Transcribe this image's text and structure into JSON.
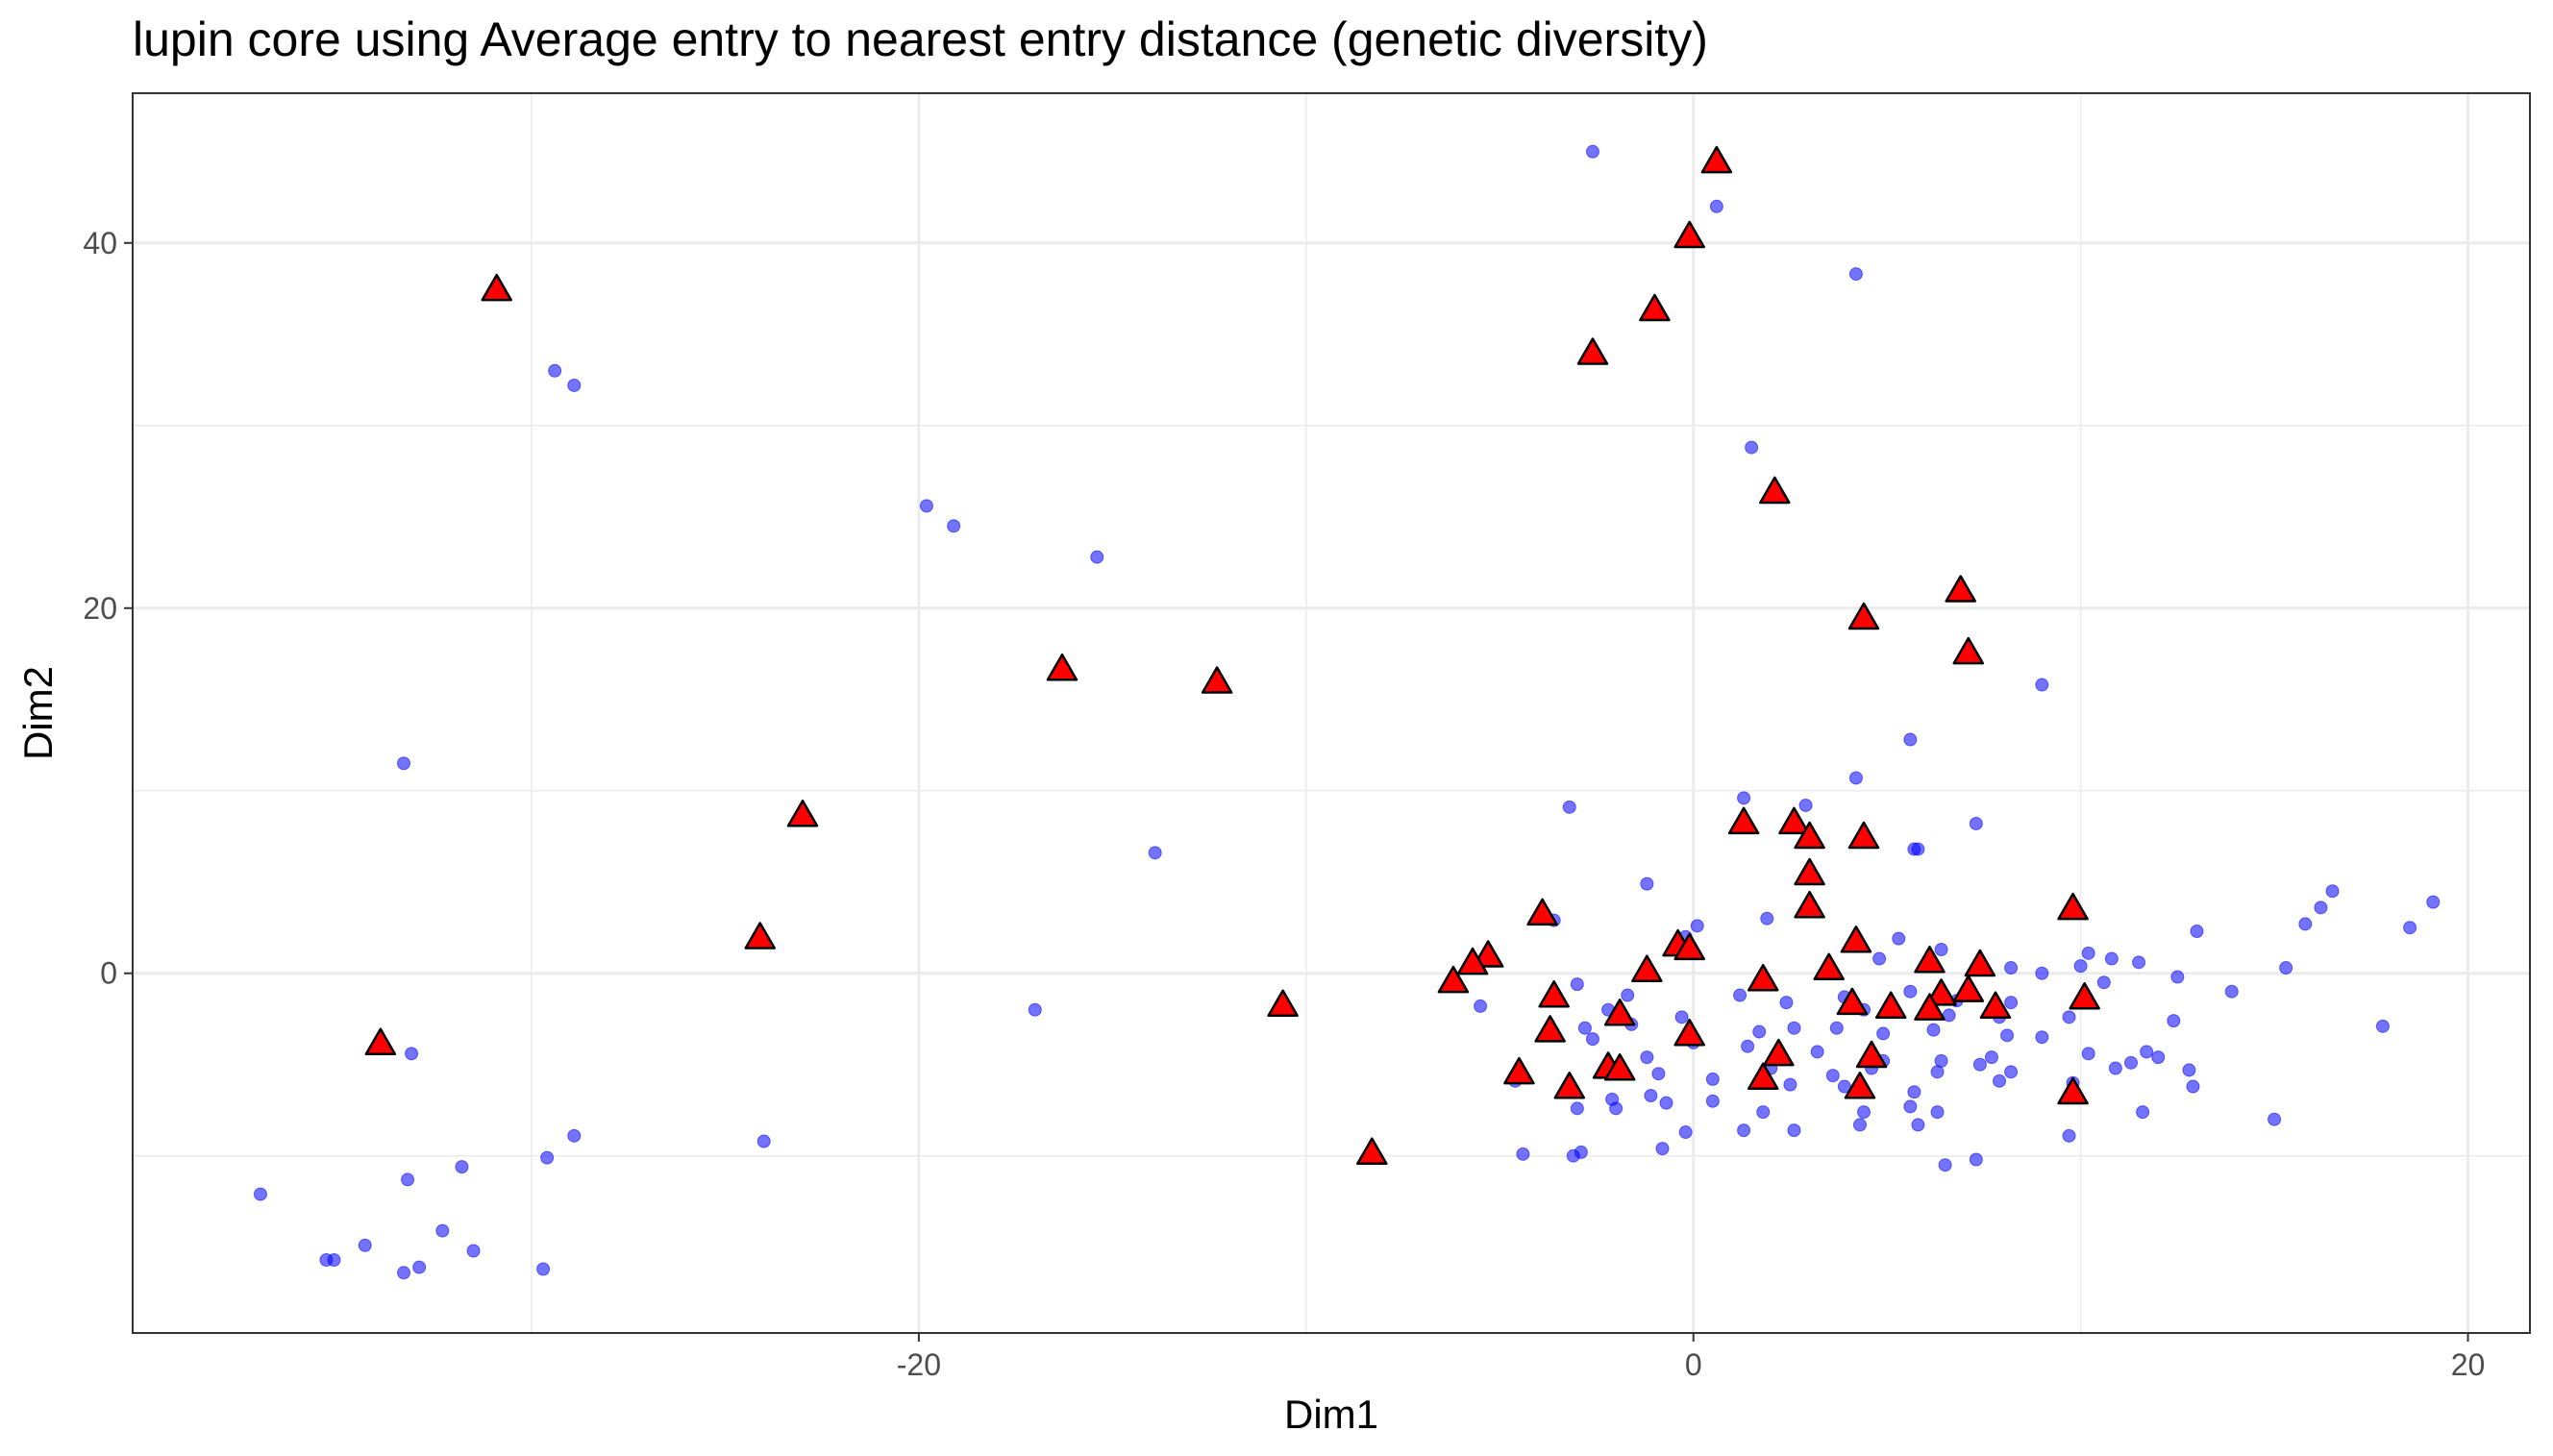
{
  "chart_data": {
    "type": "scatter",
    "title": "lupin core using Average entry to nearest entry distance (genetic diversity)",
    "xlabel": "Dim1",
    "ylabel": "Dim2",
    "xlim": [
      -40.3,
      21.6
    ],
    "ylim": [
      -19.7,
      48.2
    ],
    "x_ticks": [
      -20,
      0,
      20
    ],
    "x_tick_labels": [
      "-20",
      "0",
      "20"
    ],
    "y_ticks": [
      0,
      20,
      40
    ],
    "y_tick_labels": [
      "0",
      "20",
      "40"
    ],
    "x_minor": [
      -30,
      -10,
      10
    ],
    "y_minor": [
      -10,
      10,
      30
    ],
    "grid": true,
    "legend": "none",
    "colors": {
      "entries": "#0000ff",
      "core": "#ff0000",
      "core_outline": "#000000"
    },
    "series": [
      {
        "marker": "circle",
        "points": [
          [
            -2.6,
            45.0
          ],
          [
            0.6,
            42.0
          ],
          [
            4.2,
            38.3
          ],
          [
            -29.4,
            33.0
          ],
          [
            -28.9,
            32.2
          ],
          [
            1.5,
            28.8
          ],
          [
            -19.8,
            25.6
          ],
          [
            -19.1,
            24.5
          ],
          [
            -15.4,
            22.8
          ],
          [
            9.0,
            15.8
          ],
          [
            -33.3,
            11.5
          ],
          [
            5.6,
            12.8
          ],
          [
            4.2,
            10.7
          ],
          [
            1.3,
            9.6
          ],
          [
            2.9,
            9.2
          ],
          [
            -3.2,
            9.1
          ],
          [
            7.3,
            8.2
          ],
          [
            -13.9,
            6.6
          ],
          [
            5.7,
            6.8
          ],
          [
            5.8,
            6.8
          ],
          [
            -1.2,
            4.9
          ],
          [
            16.5,
            4.5
          ],
          [
            19.1,
            3.9
          ],
          [
            16.2,
            3.6
          ],
          [
            15.8,
            2.7
          ],
          [
            13.0,
            2.3
          ],
          [
            18.5,
            2.5
          ],
          [
            -3.6,
            2.9
          ],
          [
            0.1,
            2.6
          ],
          [
            -0.2,
            2.0
          ],
          [
            1.9,
            3.0
          ],
          [
            5.3,
            1.9
          ],
          [
            4.8,
            0.8
          ],
          [
            6.4,
            1.3
          ],
          [
            10.2,
            1.1
          ],
          [
            10.8,
            0.8
          ],
          [
            11.5,
            0.6
          ],
          [
            15.3,
            0.3
          ],
          [
            9.0,
            0.0
          ],
          [
            12.5,
            -0.2
          ],
          [
            8.2,
            0.3
          ],
          [
            10.0,
            0.4
          ],
          [
            13.9,
            -1.0
          ],
          [
            10.6,
            -0.5
          ],
          [
            -3.0,
            -0.6
          ],
          [
            -1.7,
            -1.2
          ],
          [
            1.2,
            -1.2
          ],
          [
            3.9,
            -1.3
          ],
          [
            5.6,
            -1.0
          ],
          [
            6.8,
            -1.5
          ],
          [
            8.2,
            -1.6
          ],
          [
            -17.0,
            -2.0
          ],
          [
            -5.5,
            -1.8
          ],
          [
            -2.2,
            -2.0
          ],
          [
            2.4,
            -1.6
          ],
          [
            4.4,
            -2.0
          ],
          [
            6.6,
            -2.3
          ],
          [
            7.9,
            -2.4
          ],
          [
            9.7,
            -2.4
          ],
          [
            12.4,
            -2.6
          ],
          [
            17.8,
            -2.9
          ],
          [
            -2.8,
            -3.0
          ],
          [
            -1.6,
            -2.8
          ],
          [
            -0.3,
            -2.4
          ],
          [
            1.7,
            -3.2
          ],
          [
            2.6,
            -3.0
          ],
          [
            3.7,
            -3.0
          ],
          [
            4.9,
            -3.3
          ],
          [
            6.2,
            -3.1
          ],
          [
            8.1,
            -3.4
          ],
          [
            9.0,
            -3.5
          ],
          [
            -2.6,
            -3.6
          ],
          [
            0.0,
            -3.8
          ],
          [
            1.4,
            -4.0
          ],
          [
            3.2,
            -4.3
          ],
          [
            4.9,
            -4.8
          ],
          [
            6.4,
            -4.8
          ],
          [
            7.7,
            -4.6
          ],
          [
            11.7,
            -4.3
          ],
          [
            12.0,
            -4.6
          ],
          [
            11.3,
            -4.9
          ],
          [
            10.2,
            -4.4
          ],
          [
            -33.1,
            -4.4
          ],
          [
            -1.2,
            -4.6
          ],
          [
            2.0,
            -5.2
          ],
          [
            3.6,
            -5.6
          ],
          [
            4.6,
            -5.2
          ],
          [
            6.3,
            -5.4
          ],
          [
            7.4,
            -5.0
          ],
          [
            8.2,
            -5.4
          ],
          [
            10.9,
            -5.2
          ],
          [
            12.8,
            -5.3
          ],
          [
            -4.6,
            -5.9
          ],
          [
            -0.9,
            -5.5
          ],
          [
            0.5,
            -5.8
          ],
          [
            2.5,
            -6.1
          ],
          [
            3.9,
            -6.2
          ],
          [
            5.7,
            -6.5
          ],
          [
            7.9,
            -5.9
          ],
          [
            9.8,
            -6.0
          ],
          [
            12.9,
            -6.2
          ],
          [
            -2.1,
            -6.9
          ],
          [
            -1.1,
            -6.7
          ],
          [
            0.5,
            -7.0
          ],
          [
            1.8,
            -7.6
          ],
          [
            4.4,
            -7.6
          ],
          [
            5.6,
            -7.3
          ],
          [
            11.6,
            -7.6
          ],
          [
            -3.0,
            -7.4
          ],
          [
            -0.7,
            -7.1
          ],
          [
            6.3,
            -7.6
          ],
          [
            15.0,
            -8.0
          ],
          [
            -2.0,
            -7.4
          ],
          [
            1.3,
            -8.6
          ],
          [
            2.6,
            -8.6
          ],
          [
            4.3,
            -8.3
          ],
          [
            5.8,
            -8.3
          ],
          [
            9.7,
            -8.9
          ],
          [
            -0.2,
            -8.7
          ],
          [
            -28.9,
            -8.9
          ],
          [
            -24.0,
            -9.2
          ],
          [
            -3.1,
            -10.0
          ],
          [
            -2.9,
            -9.8
          ],
          [
            -4.4,
            -9.9
          ],
          [
            6.5,
            -10.5
          ],
          [
            7.3,
            -10.2
          ],
          [
            -0.8,
            -9.6
          ],
          [
            -29.6,
            -10.1
          ],
          [
            -31.8,
            -10.6
          ],
          [
            -33.2,
            -11.3
          ],
          [
            -37.0,
            -12.1
          ],
          [
            -32.3,
            -14.1
          ],
          [
            -31.5,
            -15.2
          ],
          [
            -34.3,
            -14.9
          ],
          [
            -35.1,
            -15.7
          ],
          [
            -35.3,
            -15.7
          ],
          [
            -32.9,
            -16.1
          ],
          [
            -33.3,
            -16.4
          ],
          [
            -29.7,
            -16.2
          ]
        ]
      },
      {
        "marker": "triangle",
        "points": [
          [
            0.6,
            44.4
          ],
          [
            -0.1,
            40.3
          ],
          [
            -30.9,
            37.4
          ],
          [
            -1.0,
            36.3
          ],
          [
            -2.6,
            33.9
          ],
          [
            2.1,
            26.3
          ],
          [
            6.9,
            20.9
          ],
          [
            4.4,
            19.4
          ],
          [
            7.1,
            17.5
          ],
          [
            -16.3,
            16.6
          ],
          [
            -12.3,
            15.9
          ],
          [
            -23.0,
            8.6
          ],
          [
            1.3,
            8.2
          ],
          [
            2.6,
            8.2
          ],
          [
            3.0,
            7.4
          ],
          [
            4.4,
            7.4
          ],
          [
            3.0,
            5.4
          ],
          [
            3.0,
            3.6
          ],
          [
            9.8,
            3.5
          ],
          [
            -3.9,
            3.2
          ],
          [
            -24.1,
            1.9
          ],
          [
            -0.4,
            1.5
          ],
          [
            -0.1,
            1.3
          ],
          [
            4.2,
            1.7
          ],
          [
            -5.3,
            0.9
          ],
          [
            -5.7,
            0.5
          ],
          [
            6.1,
            0.6
          ],
          [
            7.4,
            0.4
          ],
          [
            -1.2,
            0.1
          ],
          [
            3.5,
            0.2
          ],
          [
            -6.2,
            -0.5
          ],
          [
            1.8,
            -0.4
          ],
          [
            -3.6,
            -1.3
          ],
          [
            6.4,
            -1.2
          ],
          [
            7.1,
            -1.0
          ],
          [
            10.1,
            -1.4
          ],
          [
            -10.6,
            -1.8
          ],
          [
            4.1,
            -1.7
          ],
          [
            5.1,
            -1.9
          ],
          [
            6.1,
            -2.0
          ],
          [
            7.8,
            -1.9
          ],
          [
            -1.9,
            -2.3
          ],
          [
            -3.7,
            -3.2
          ],
          [
            -0.1,
            -3.4
          ],
          [
            -33.9,
            -3.9
          ],
          [
            2.2,
            -4.5
          ],
          [
            4.6,
            -4.6
          ],
          [
            -4.5,
            -5.5
          ],
          [
            -2.2,
            -5.2
          ],
          [
            -1.9,
            -5.3
          ],
          [
            1.8,
            -5.8
          ],
          [
            -3.2,
            -6.3
          ],
          [
            4.3,
            -6.3
          ],
          [
            9.8,
            -6.6
          ],
          [
            -8.3,
            -9.9
          ]
        ]
      }
    ]
  }
}
